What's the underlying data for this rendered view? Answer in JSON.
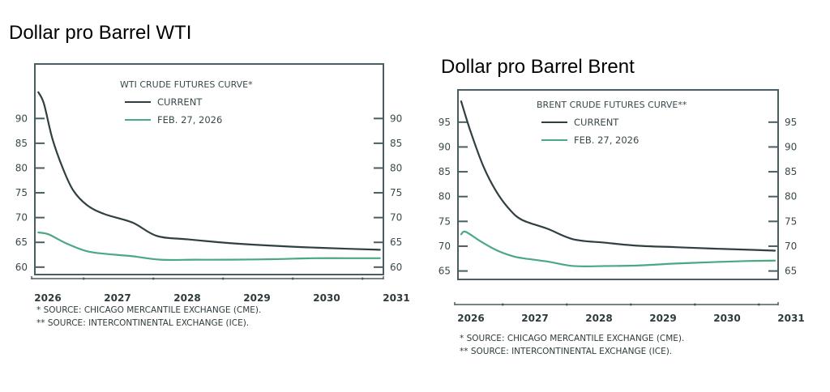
{
  "titles": {
    "wti": "Dollar pro Barrel WTI",
    "brent": "Dollar pro Barrel Brent"
  },
  "colors": {
    "current": "#2f3f42",
    "feb": "#4aa882",
    "axis": "#4a5d60"
  },
  "chart_data": [
    {
      "id": "wti",
      "type": "line",
      "title": "WTI CRUDE FUTURES CURVE*",
      "xlabel": "",
      "ylabel": "",
      "xlim": [
        2026.0,
        2031.0
      ],
      "ylim": [
        58.5,
        101
      ],
      "yticks": [
        60,
        65,
        70,
        75,
        80,
        85,
        90
      ],
      "xtick_labels": [
        "2026",
        "2027",
        "2028",
        "2029",
        "2030",
        "2031"
      ],
      "legend_position": "top-center",
      "grid": false,
      "series": [
        {
          "name": "CURRENT",
          "color_key": "current",
          "x": [
            2026.05,
            2026.13,
            2026.25,
            2026.4,
            2026.55,
            2026.75,
            2027.0,
            2027.4,
            2027.75,
            2028.2,
            2028.75,
            2029.3,
            2029.9,
            2030.5,
            2030.95
          ],
          "y": [
            95.3,
            93.0,
            86.0,
            80.0,
            75.5,
            72.5,
            70.7,
            69.0,
            66.3,
            65.6,
            64.9,
            64.4,
            64.0,
            63.7,
            63.5
          ]
        },
        {
          "name": "FEB. 27, 2026",
          "color_key": "feb",
          "x": [
            2026.05,
            2026.2,
            2026.45,
            2026.75,
            2027.0,
            2027.4,
            2027.8,
            2028.3,
            2028.8,
            2029.4,
            2030.0,
            2030.5,
            2030.95
          ],
          "y": [
            67.0,
            66.6,
            64.8,
            63.2,
            62.7,
            62.2,
            61.5,
            61.5,
            61.5,
            61.6,
            61.8,
            61.8,
            61.8
          ]
        }
      ]
    },
    {
      "id": "brent",
      "type": "line",
      "title": "BRENT CRUDE FUTURES CURVE**",
      "xlabel": "",
      "ylabel": "",
      "xlim": [
        2026.0,
        2031.0
      ],
      "ylim": [
        63.3,
        101.5
      ],
      "yticks": [
        65,
        70,
        75,
        80,
        85,
        90,
        95
      ],
      "xtick_labels": [
        "2026",
        "2027",
        "2028",
        "2029",
        "2030",
        "2031"
      ],
      "legend_position": "top-center",
      "grid": false,
      "series": [
        {
          "name": "CURRENT",
          "color_key": "current",
          "x": [
            2026.05,
            2026.2,
            2026.4,
            2026.6,
            2026.8,
            2027.0,
            2027.4,
            2027.8,
            2028.3,
            2028.8,
            2029.4,
            2030.0,
            2030.5,
            2030.95
          ],
          "y": [
            99.2,
            93.0,
            86.0,
            81.0,
            77.5,
            75.3,
            73.5,
            71.4,
            70.7,
            70.1,
            69.8,
            69.5,
            69.3,
            69.1
          ]
        },
        {
          "name": "FEB. 27, 2026",
          "color_key": "feb",
          "x": [
            2026.05,
            2026.12,
            2026.35,
            2026.6,
            2026.85,
            2027.0,
            2027.4,
            2027.8,
            2028.3,
            2028.8,
            2029.4,
            2030.0,
            2030.5,
            2030.95
          ],
          "y": [
            72.4,
            72.9,
            71.0,
            69.2,
            68.0,
            67.6,
            66.9,
            66.0,
            66.0,
            66.1,
            66.5,
            66.8,
            67.0,
            67.1
          ]
        }
      ]
    }
  ],
  "footnotes": [
    "*  SOURCE: CHICAGO MERCANTILE EXCHANGE (CME).",
    "** SOURCE: INTERCONTINENTAL EXCHANGE (ICE)."
  ]
}
